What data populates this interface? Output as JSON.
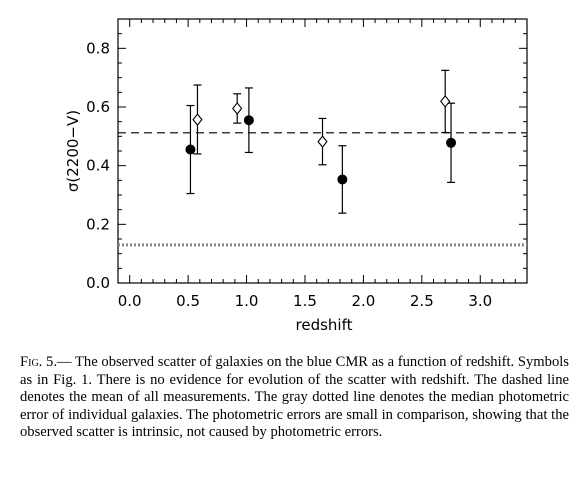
{
  "chart_data": {
    "type": "scatter",
    "title": "",
    "xlabel": "redshift",
    "ylabel": "σ(2200−V)",
    "xlim": [
      -0.1,
      3.4
    ],
    "ylim": [
      0.0,
      0.9
    ],
    "xticks": [
      0.0,
      0.5,
      1.0,
      1.5,
      2.0,
      2.5,
      3.0
    ],
    "xtick_labels": [
      "0.0",
      "0.5",
      "1.0",
      "1.5",
      "2.0",
      "2.5",
      "3.0"
    ],
    "yticks": [
      0.0,
      0.2,
      0.4,
      0.6,
      0.8
    ],
    "ytick_labels": [
      "0.0",
      "0.2",
      "0.4",
      "0.6",
      "0.8"
    ],
    "grid": false,
    "legend": "none",
    "series": [
      {
        "marker": "filled-circle",
        "color": "#000000",
        "points": [
          {
            "x": 0.52,
            "y": 0.455,
            "ylow": 0.305,
            "yhigh": 0.605
          },
          {
            "x": 1.02,
            "y": 0.555,
            "ylow": 0.445,
            "yhigh": 0.665
          },
          {
            "x": 1.82,
            "y": 0.353,
            "ylow": 0.238,
            "yhigh": 0.468
          },
          {
            "x": 2.75,
            "y": 0.478,
            "ylow": 0.343,
            "yhigh": 0.613
          }
        ]
      },
      {
        "marker": "open-diamond",
        "color": "#000000",
        "points": [
          {
            "x": 0.58,
            "y": 0.557,
            "ylow": 0.44,
            "yhigh": 0.675
          },
          {
            "x": 0.92,
            "y": 0.595,
            "ylow": 0.545,
            "yhigh": 0.645
          },
          {
            "x": 1.65,
            "y": 0.482,
            "ylow": 0.403,
            "yhigh": 0.561
          },
          {
            "x": 2.7,
            "y": 0.619,
            "ylow": 0.513,
            "yhigh": 0.725
          }
        ]
      }
    ],
    "reference_lines": [
      {
        "style": "dashed",
        "color": "#000000",
        "y": 0.512
      },
      {
        "style": "dotted",
        "color": "#888888",
        "y": 0.13
      }
    ]
  },
  "caption": {
    "label": "Fig. 5.",
    "text": "— The observed scatter of galaxies on the blue CMR as a function of redshift. Symbols as in Fig. 1. There is no evidence for evolution of the scatter with redshift. The dashed line denotes the mean of all measurements. The gray dotted line denotes the median photometric error of individual galaxies. The photometric errors are small in comparison, showing that the observed scatter is intrinsic, not caused by photometric errors."
  }
}
